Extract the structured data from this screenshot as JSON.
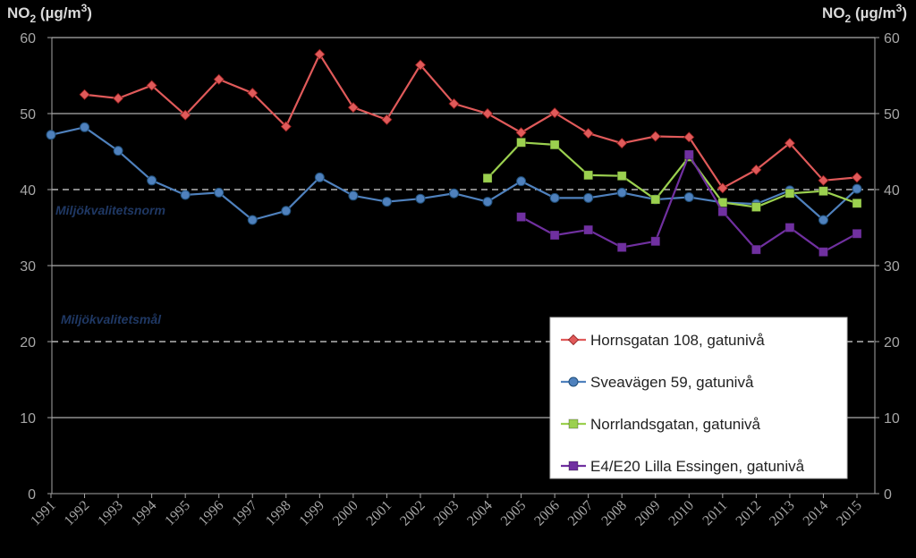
{
  "chart_data": {
    "type": "line",
    "ylabel_left": "NO2 (µg/m3)",
    "ylabel_right": "NO2 (µg/m3)",
    "ylabel_parts": {
      "base": "NO",
      "sub": "2",
      "unit": " (µg/m",
      "sup": "3",
      "close": ")"
    },
    "ylim": [
      0,
      60
    ],
    "yticks": [
      0,
      10,
      20,
      30,
      40,
      50,
      60
    ],
    "x": [
      1991,
      1992,
      1993,
      1994,
      1995,
      1996,
      1997,
      1998,
      1999,
      2000,
      2001,
      2002,
      2003,
      2004,
      2005,
      2006,
      2007,
      2008,
      2009,
      2010,
      2011,
      2012,
      2013,
      2014,
      2015
    ],
    "grid": "horizontal",
    "legend_position": "bottom-right",
    "reference_lines": [
      {
        "value": 40,
        "label": "Miljökvalitetsnorm",
        "style": "dashed"
      },
      {
        "value": 20,
        "label": "Miljökvalitetsmål",
        "style": "dashed"
      }
    ],
    "series": [
      {
        "name": "Hornsgatan 108, gatunivå",
        "color": "#e05a5a",
        "marker": "diamond",
        "values": [
          null,
          52.5,
          52,
          53.7,
          49.8,
          54.5,
          52.7,
          48.3,
          57.8,
          50.8,
          49.2,
          56.4,
          51.3,
          50,
          47.5,
          50.1,
          47.4,
          46.1,
          47,
          46.9,
          40.2,
          42.6,
          46.1,
          41.2,
          41.6
        ]
      },
      {
        "name": "Sveavägen 59, gatunivå",
        "color": "#4f81bd",
        "marker": "circle",
        "values": [
          47.2,
          48.2,
          45.1,
          41.2,
          39.3,
          39.6,
          36,
          37.2,
          41.6,
          39.2,
          38.4,
          38.8,
          39.5,
          38.4,
          41.1,
          38.9,
          38.9,
          39.6,
          38.7,
          39,
          38.3,
          38.1,
          39.9,
          36,
          40.1
        ]
      },
      {
        "name": "Norrlandsgatan,  gatunivå",
        "color": "#9bd04f",
        "marker": "square",
        "values": [
          null,
          null,
          null,
          null,
          null,
          null,
          null,
          null,
          null,
          null,
          null,
          null,
          null,
          41.5,
          46.2,
          45.9,
          41.9,
          41.8,
          38.7,
          44.3,
          38.3,
          37.7,
          39.5,
          39.8,
          38.2
        ]
      },
      {
        "name": "E4/E20 Lilla Essingen, gatunivå",
        "color": "#7030a0",
        "marker": "square",
        "values": [
          null,
          null,
          null,
          null,
          null,
          null,
          null,
          null,
          null,
          null,
          null,
          null,
          null,
          null,
          36.4,
          34,
          34.7,
          32.4,
          33.2,
          44.6,
          37.1,
          32.1,
          35,
          31.8,
          34.2
        ]
      }
    ]
  }
}
